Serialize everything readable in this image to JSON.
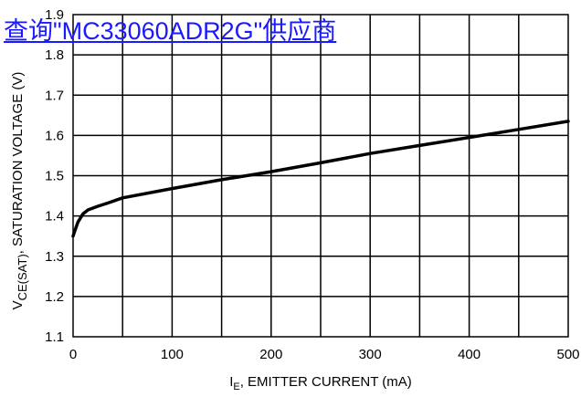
{
  "overlay": {
    "link_text": "查询\"MC33060ADR2G\"供应商",
    "link_color": "#1a1aff"
  },
  "chart_data": {
    "type": "line",
    "title": "",
    "xlabel_main": "I",
    "xlabel_sub": "E",
    "xlabel_rest": ", EMITTER CURRENT (mA)",
    "ylabel_main": "V",
    "ylabel_sub": "CE(SAT)",
    "ylabel_rest": ", SATURATION VOLTAGE (V)",
    "xlim": [
      0,
      500
    ],
    "ylim": [
      1.1,
      1.9
    ],
    "x_ticks": [
      0,
      100,
      200,
      300,
      400,
      500
    ],
    "x_tick_labels": [
      "0",
      "100",
      "200",
      "300",
      "400",
      "500"
    ],
    "y_ticks": [
      1.1,
      1.2,
      1.3,
      1.4,
      1.5,
      1.6,
      1.7,
      1.8,
      1.9
    ],
    "y_tick_labels": [
      "1.1",
      "1.2",
      "1.3",
      "1.4",
      "1.5",
      "1.6",
      "1.7",
      "1.8",
      "1.9"
    ],
    "x_grid_step": 50,
    "grid": true,
    "line_color": "#000000",
    "series": [
      {
        "x": [
          0,
          2,
          5,
          10,
          15,
          25,
          35,
          50,
          100,
          150,
          200,
          250,
          300,
          350,
          400,
          450,
          500
        ],
        "y": [
          1.35,
          1.365,
          1.385,
          1.405,
          1.415,
          1.424,
          1.432,
          1.445,
          1.468,
          1.49,
          1.51,
          1.532,
          1.555,
          1.575,
          1.595,
          1.615,
          1.635
        ]
      }
    ]
  }
}
